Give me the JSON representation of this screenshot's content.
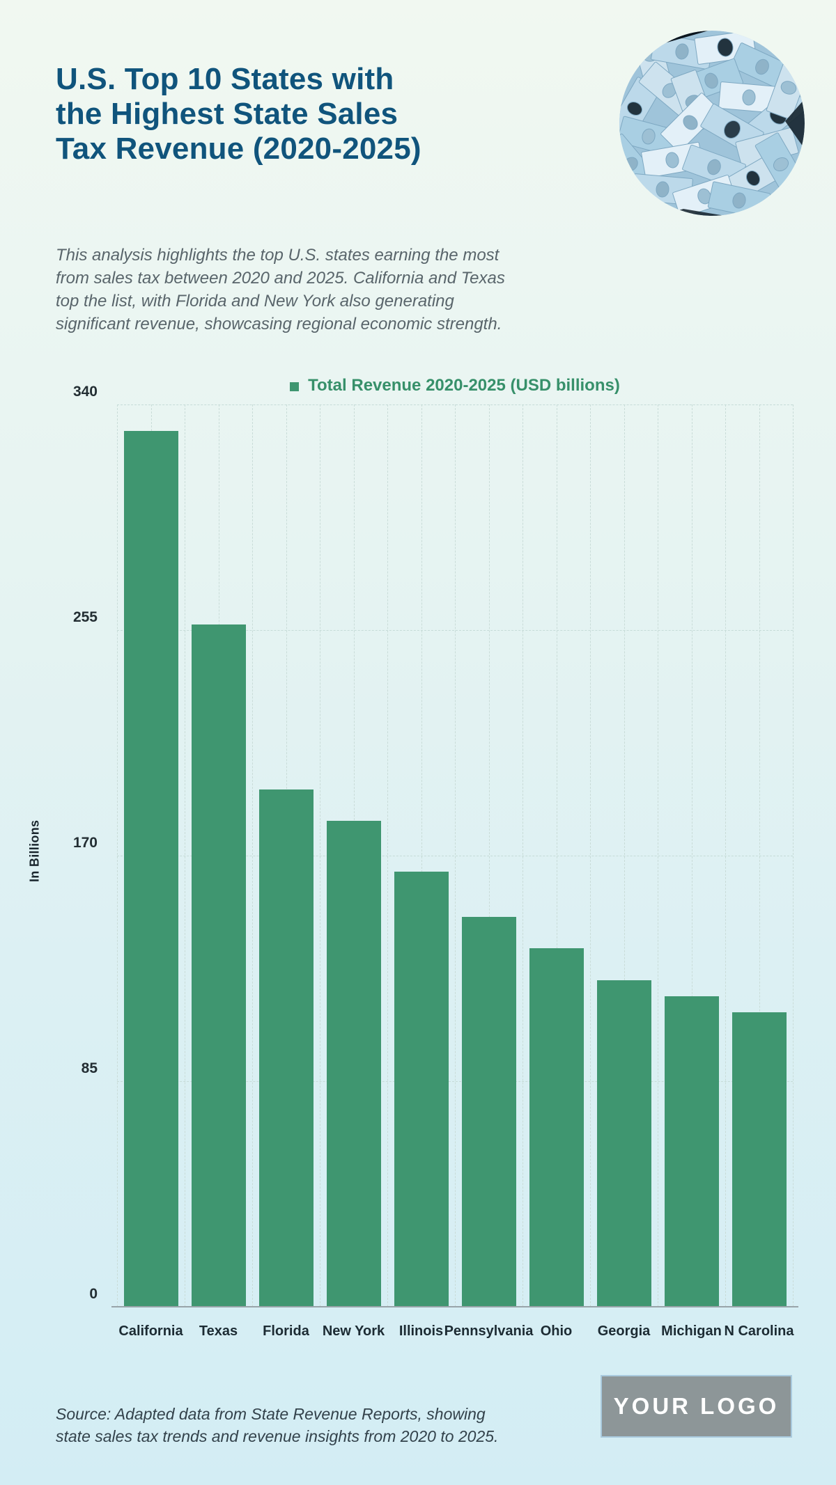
{
  "header": {
    "title_lines": [
      "U.S. Top 10 States with",
      "the Highest State Sales",
      "Tax Revenue (2020-2025)"
    ],
    "description_lines": [
      "This analysis highlights the top U.S. states earning the most",
      "from sales tax between 2020 and 2025. California and Texas",
      "top the list, with Florida and New York also generating",
      "significant revenue, showcasing regional economic strength."
    ]
  },
  "chart_data": {
    "type": "bar",
    "legend_label": "Total Revenue 2020-2025 (USD billions)",
    "categories": [
      "California",
      "Texas",
      "Florida",
      "New York",
      "Illinois",
      "Pennsylvania",
      "Ohio",
      "Georgia",
      "Michigan",
      "N Carolina"
    ],
    "values": [
      330,
      257,
      195,
      183,
      164,
      147,
      135,
      123,
      117,
      111
    ],
    "ylabel": "In Billions",
    "yticks": [
      340,
      255,
      170,
      85,
      0
    ],
    "ylim": [
      0,
      340
    ],
    "grid": "dashed",
    "legend_position": "top",
    "bar_color": "#3f9670",
    "legend_text_color": "#37906a"
  },
  "footer": {
    "source_lines": [
      "Source: Adapted data from State Revenue Reports, showing",
      "state sales tax trends and revenue insights from 2020 to 2025."
    ],
    "logo_text": "YOUR LOGO"
  },
  "colors": {
    "title": "#10547c",
    "description": "#59656b",
    "bar": "#3f9670",
    "grid": "#c5dbd7",
    "axis": "#98a4a9",
    "background_top": "#f1f8f1",
    "background_bottom": "#d3edf4",
    "logo_background": "#8d9698",
    "logo_border": "#a9cade",
    "logo_text": "#ffffff"
  }
}
